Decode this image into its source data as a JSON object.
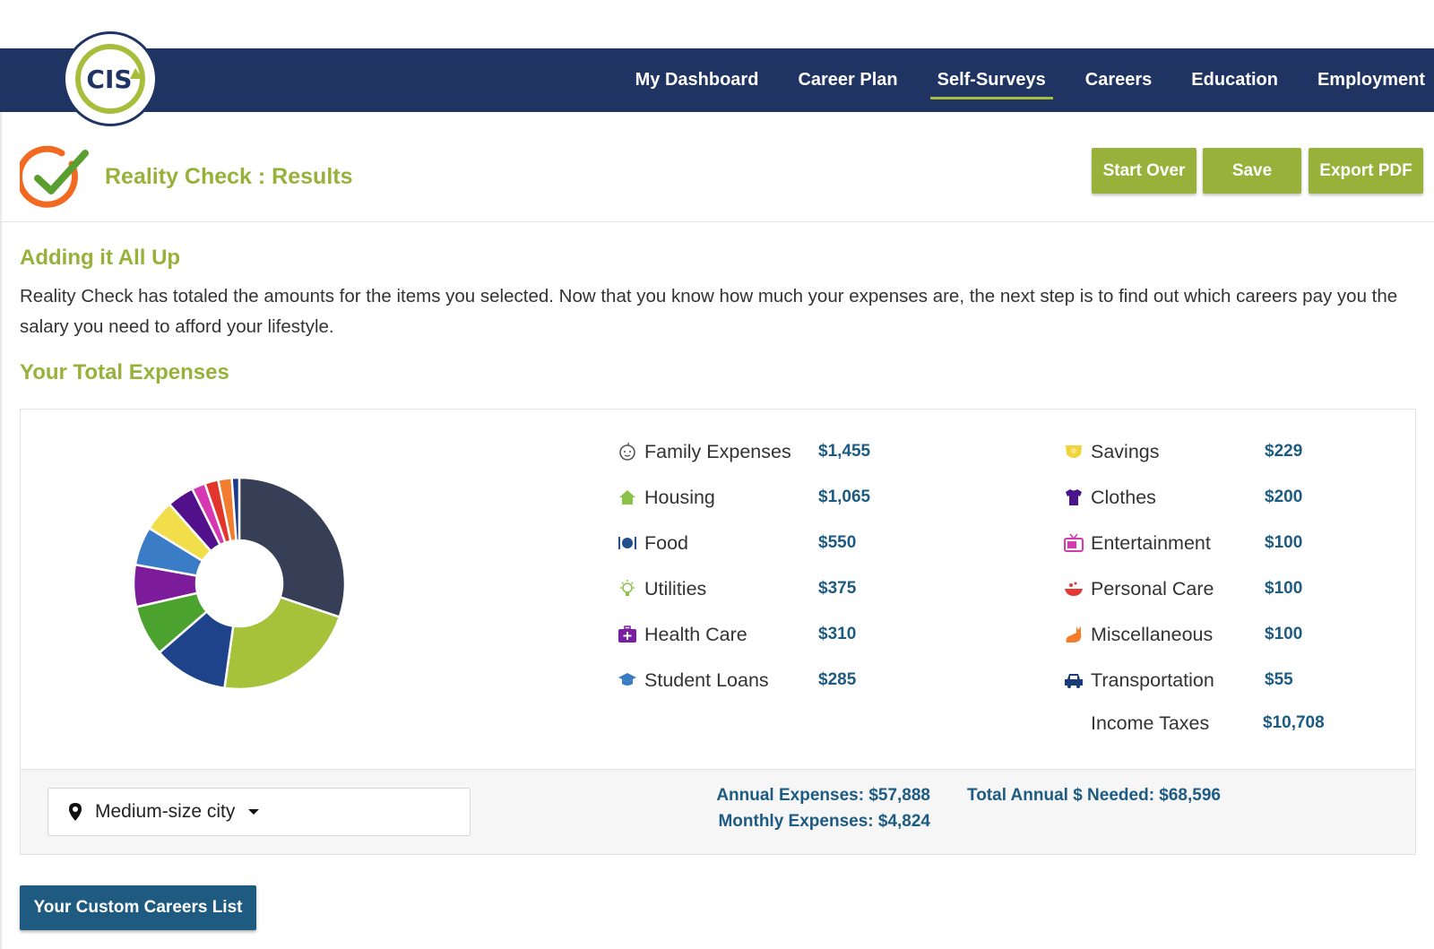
{
  "brand": {
    "logo_text": "CIS",
    "navy": "#1f3462",
    "green": "#98b13a",
    "blue_text": "#1d5b82"
  },
  "nav": {
    "items": [
      "My Dashboard",
      "Career Plan",
      "Self-Surveys",
      "Careers",
      "Education",
      "Employment"
    ],
    "active": "Self-Surveys"
  },
  "header": {
    "title": "Reality Check : Results",
    "icon": "orange-check-icon"
  },
  "toolbar": {
    "start_over": "Start Over",
    "save": "Save",
    "export_pdf": "Export PDF"
  },
  "section1": {
    "heading": "Adding it All Up",
    "text": "Reality Check has totaled the amounts for the items you selected. Now that you know how much your expenses are, the next step is to find out which careers pay you the salary you need to afford your lifestyle."
  },
  "section2": {
    "heading": "Your Total Expenses"
  },
  "expenses": {
    "left": [
      {
        "label": "Family Expenses",
        "value": "$1,455",
        "icon": "baby-face-icon",
        "color": "#555555"
      },
      {
        "label": "Housing",
        "value": "$1,065",
        "icon": "house-icon",
        "color": "#8bc34a"
      },
      {
        "label": "Food",
        "value": "$550",
        "icon": "plate-utensils-icon",
        "color": "#1f4f8f"
      },
      {
        "label": "Utilities",
        "value": "$375",
        "icon": "lightbulb-icon",
        "color": "#8bc34a"
      },
      {
        "label": "Health Care",
        "value": "$310",
        "icon": "medical-kit-icon",
        "color": "#7b1fa2"
      },
      {
        "label": "Student Loans",
        "value": "$285",
        "icon": "graduation-cap-icon",
        "color": "#3a7cc1"
      }
    ],
    "right": [
      {
        "label": "Savings",
        "value": "$229",
        "icon": "piggy-bank-icon",
        "color": "#f2d33c"
      },
      {
        "label": "Clothes",
        "value": "$200",
        "icon": "tshirt-icon",
        "color": "#4a148c"
      },
      {
        "label": "Entertainment",
        "value": "$100",
        "icon": "tv-icon",
        "color": "#d63ab0"
      },
      {
        "label": "Personal Care",
        "value": "$100",
        "icon": "soap-dish-icon",
        "color": "#e53935"
      },
      {
        "label": "Miscellaneous",
        "value": "$100",
        "icon": "cat-icon",
        "color": "#f57c2a"
      },
      {
        "label": "Transportation",
        "value": "$55",
        "icon": "car-icon",
        "color": "#1a3d7a"
      }
    ],
    "taxes": {
      "label": "Income Taxes",
      "value": "$10,708"
    }
  },
  "chart_data": {
    "type": "pie",
    "categories": [
      "Family Expenses",
      "Housing",
      "Food",
      "Utilities",
      "Health Care",
      "Student Loans",
      "Savings",
      "Clothes",
      "Entertainment",
      "Personal Care",
      "Miscellaneous",
      "Transportation"
    ],
    "values": [
      1455,
      1065,
      550,
      375,
      310,
      285,
      229,
      200,
      100,
      100,
      100,
      55
    ],
    "colors": [
      "#363f56",
      "#a5c23a",
      "#1f438a",
      "#4ca22e",
      "#7d1c9b",
      "#3b7cc6",
      "#f2dd4a",
      "#52118a",
      "#d538b0",
      "#e2362d",
      "#f27d31",
      "#1d3a8c"
    ],
    "donut": true
  },
  "location": {
    "selected": "Medium-size city",
    "icon": "map-pin-icon"
  },
  "totals": {
    "annual": "Annual Expenses: $57,888",
    "monthly": "Monthly Expenses: $4,824",
    "total_needed": "Total Annual $ Needed: $68,596"
  },
  "careers_button": "Your Custom Careers List"
}
